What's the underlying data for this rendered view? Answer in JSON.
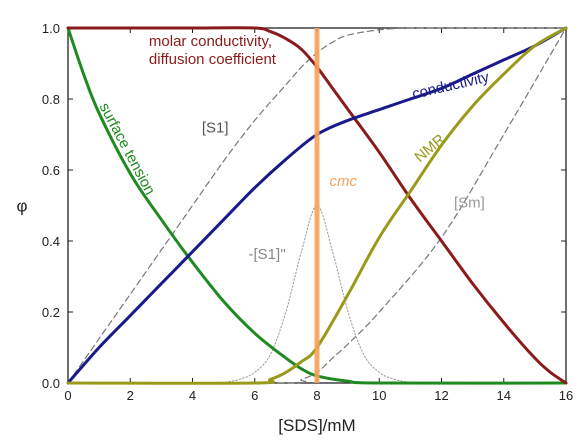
{
  "chart_data": {
    "type": "line",
    "title": "",
    "xlabel": "[SDS]/mM",
    "ylabel": "φ",
    "xlim": [
      0,
      16
    ],
    "ylim": [
      0,
      1.0
    ],
    "xticks": [
      "0",
      "2",
      "4",
      "6",
      "8",
      "10",
      "12",
      "14",
      "16"
    ],
    "yticks": [
      "0.0",
      "0.2",
      "0.4",
      "0.6",
      "0.8",
      "1.0"
    ],
    "grid": false,
    "legend": "none",
    "cmc": {
      "label": "cmc",
      "x": 8,
      "color": "#f7a25a"
    },
    "series": [
      {
        "name": "molar conductivity, diffusion coefficient",
        "color": "#8b1a1a",
        "style": "solid",
        "x": [
          0,
          2,
          4,
          6,
          6.5,
          7,
          7.5,
          8,
          8.5,
          9,
          10,
          11,
          12,
          13,
          14,
          15,
          15.5,
          16
        ],
        "y": [
          1.0,
          1.0,
          1.0,
          1.0,
          0.99,
          0.97,
          0.94,
          0.89,
          0.83,
          0.77,
          0.65,
          0.52,
          0.4,
          0.28,
          0.17,
          0.07,
          0.03,
          0.0
        ]
      },
      {
        "name": "surface tension",
        "color": "#1f8a1f",
        "style": "solid",
        "x": [
          0,
          0.5,
          1,
          2,
          3,
          4,
          5,
          6,
          7,
          7.5,
          8,
          9,
          10,
          16
        ],
        "y": [
          1.0,
          0.87,
          0.76,
          0.59,
          0.46,
          0.34,
          0.23,
          0.14,
          0.07,
          0.04,
          0.02,
          0.005,
          0.0,
          0.0
        ]
      },
      {
        "name": "conductivity",
        "color": "#1a1a8b",
        "style": "solid",
        "x": [
          0,
          1,
          2,
          3,
          4,
          5,
          6,
          7,
          8,
          9,
          10,
          11,
          12,
          13,
          14,
          15,
          16
        ],
        "y": [
          0.0,
          0.1,
          0.19,
          0.28,
          0.37,
          0.46,
          0.55,
          0.63,
          0.7,
          0.74,
          0.77,
          0.8,
          0.83,
          0.87,
          0.91,
          0.95,
          1.0
        ]
      },
      {
        "name": "NMR",
        "color": "#9a9a1a",
        "style": "solid",
        "x": [
          0,
          6,
          6.5,
          7,
          7.5,
          8,
          9,
          10,
          11,
          12,
          13,
          14,
          15,
          16
        ],
        "y": [
          0.0,
          0.0,
          0.01,
          0.03,
          0.06,
          0.1,
          0.25,
          0.41,
          0.54,
          0.67,
          0.78,
          0.87,
          0.95,
          1.0
        ]
      },
      {
        "name": "[S1]",
        "color": "#777777",
        "style": "dashed",
        "x": [
          0,
          1,
          2,
          3,
          4,
          5,
          6,
          7,
          7.5,
          8,
          8.5,
          9,
          10,
          11,
          12,
          16
        ],
        "y": [
          0.0,
          0.125,
          0.25,
          0.375,
          0.5,
          0.625,
          0.74,
          0.84,
          0.89,
          0.93,
          0.96,
          0.98,
          0.995,
          1.0,
          1.0,
          1.0
        ]
      },
      {
        "name": "[Sm]",
        "color": "#777777",
        "style": "dashed",
        "x": [
          0,
          7,
          7.5,
          8,
          8.5,
          9,
          10,
          12,
          14,
          16
        ],
        "y": [
          0.0,
          0.0,
          0.01,
          0.03,
          0.07,
          0.11,
          0.2,
          0.41,
          0.7,
          1.0
        ]
      },
      {
        "name": "-[S1]''",
        "color": "#999999",
        "style": "dotted",
        "x": [
          4.5,
          5,
          5.5,
          6,
          6.5,
          7,
          7.5,
          8,
          8.5,
          9,
          9.5,
          10,
          10.5,
          11,
          11.5
        ],
        "y": [
          0.0,
          0.002,
          0.01,
          0.03,
          0.08,
          0.2,
          0.37,
          0.5,
          0.37,
          0.2,
          0.08,
          0.03,
          0.01,
          0.002,
          0.0
        ]
      }
    ],
    "annotations": [
      {
        "key": "molar",
        "lines": [
          "molar conductivity,",
          "diffusion coefficient"
        ],
        "color": "#8b1a1a",
        "x": 2.6,
        "y": 0.95
      },
      {
        "key": "conductivity",
        "lines": [
          "conductivity"
        ],
        "color": "#1a1a8b",
        "x": 11.1,
        "y": 0.8,
        "rotate": -13
      },
      {
        "key": "surface",
        "lines": [
          "surface tension"
        ],
        "color": "#1f8a1f",
        "x": 1.0,
        "y": 0.78,
        "rotate": 62
      },
      {
        "key": "nmr",
        "lines": [
          "NMR"
        ],
        "color": "#9a9a1a",
        "x": 11.3,
        "y": 0.62,
        "rotate": -40
      },
      {
        "key": "s1",
        "lines": [
          "[S1]"
        ],
        "color": "#555555",
        "x": 4.3,
        "y": 0.705
      },
      {
        "key": "sm",
        "lines": [
          "[Sm]"
        ],
        "color": "#999999",
        "x": 12.4,
        "y": 0.495
      },
      {
        "key": "s1dd",
        "lines": [
          "-[S1]''"
        ],
        "color": "#888888",
        "x": 5.8,
        "y": 0.35
      },
      {
        "key": "cmc",
        "lines": [
          "cmc"
        ],
        "color": "#f7a25a",
        "x": 8.4,
        "y": 0.555,
        "italic": true,
        "size": 17
      }
    ]
  }
}
